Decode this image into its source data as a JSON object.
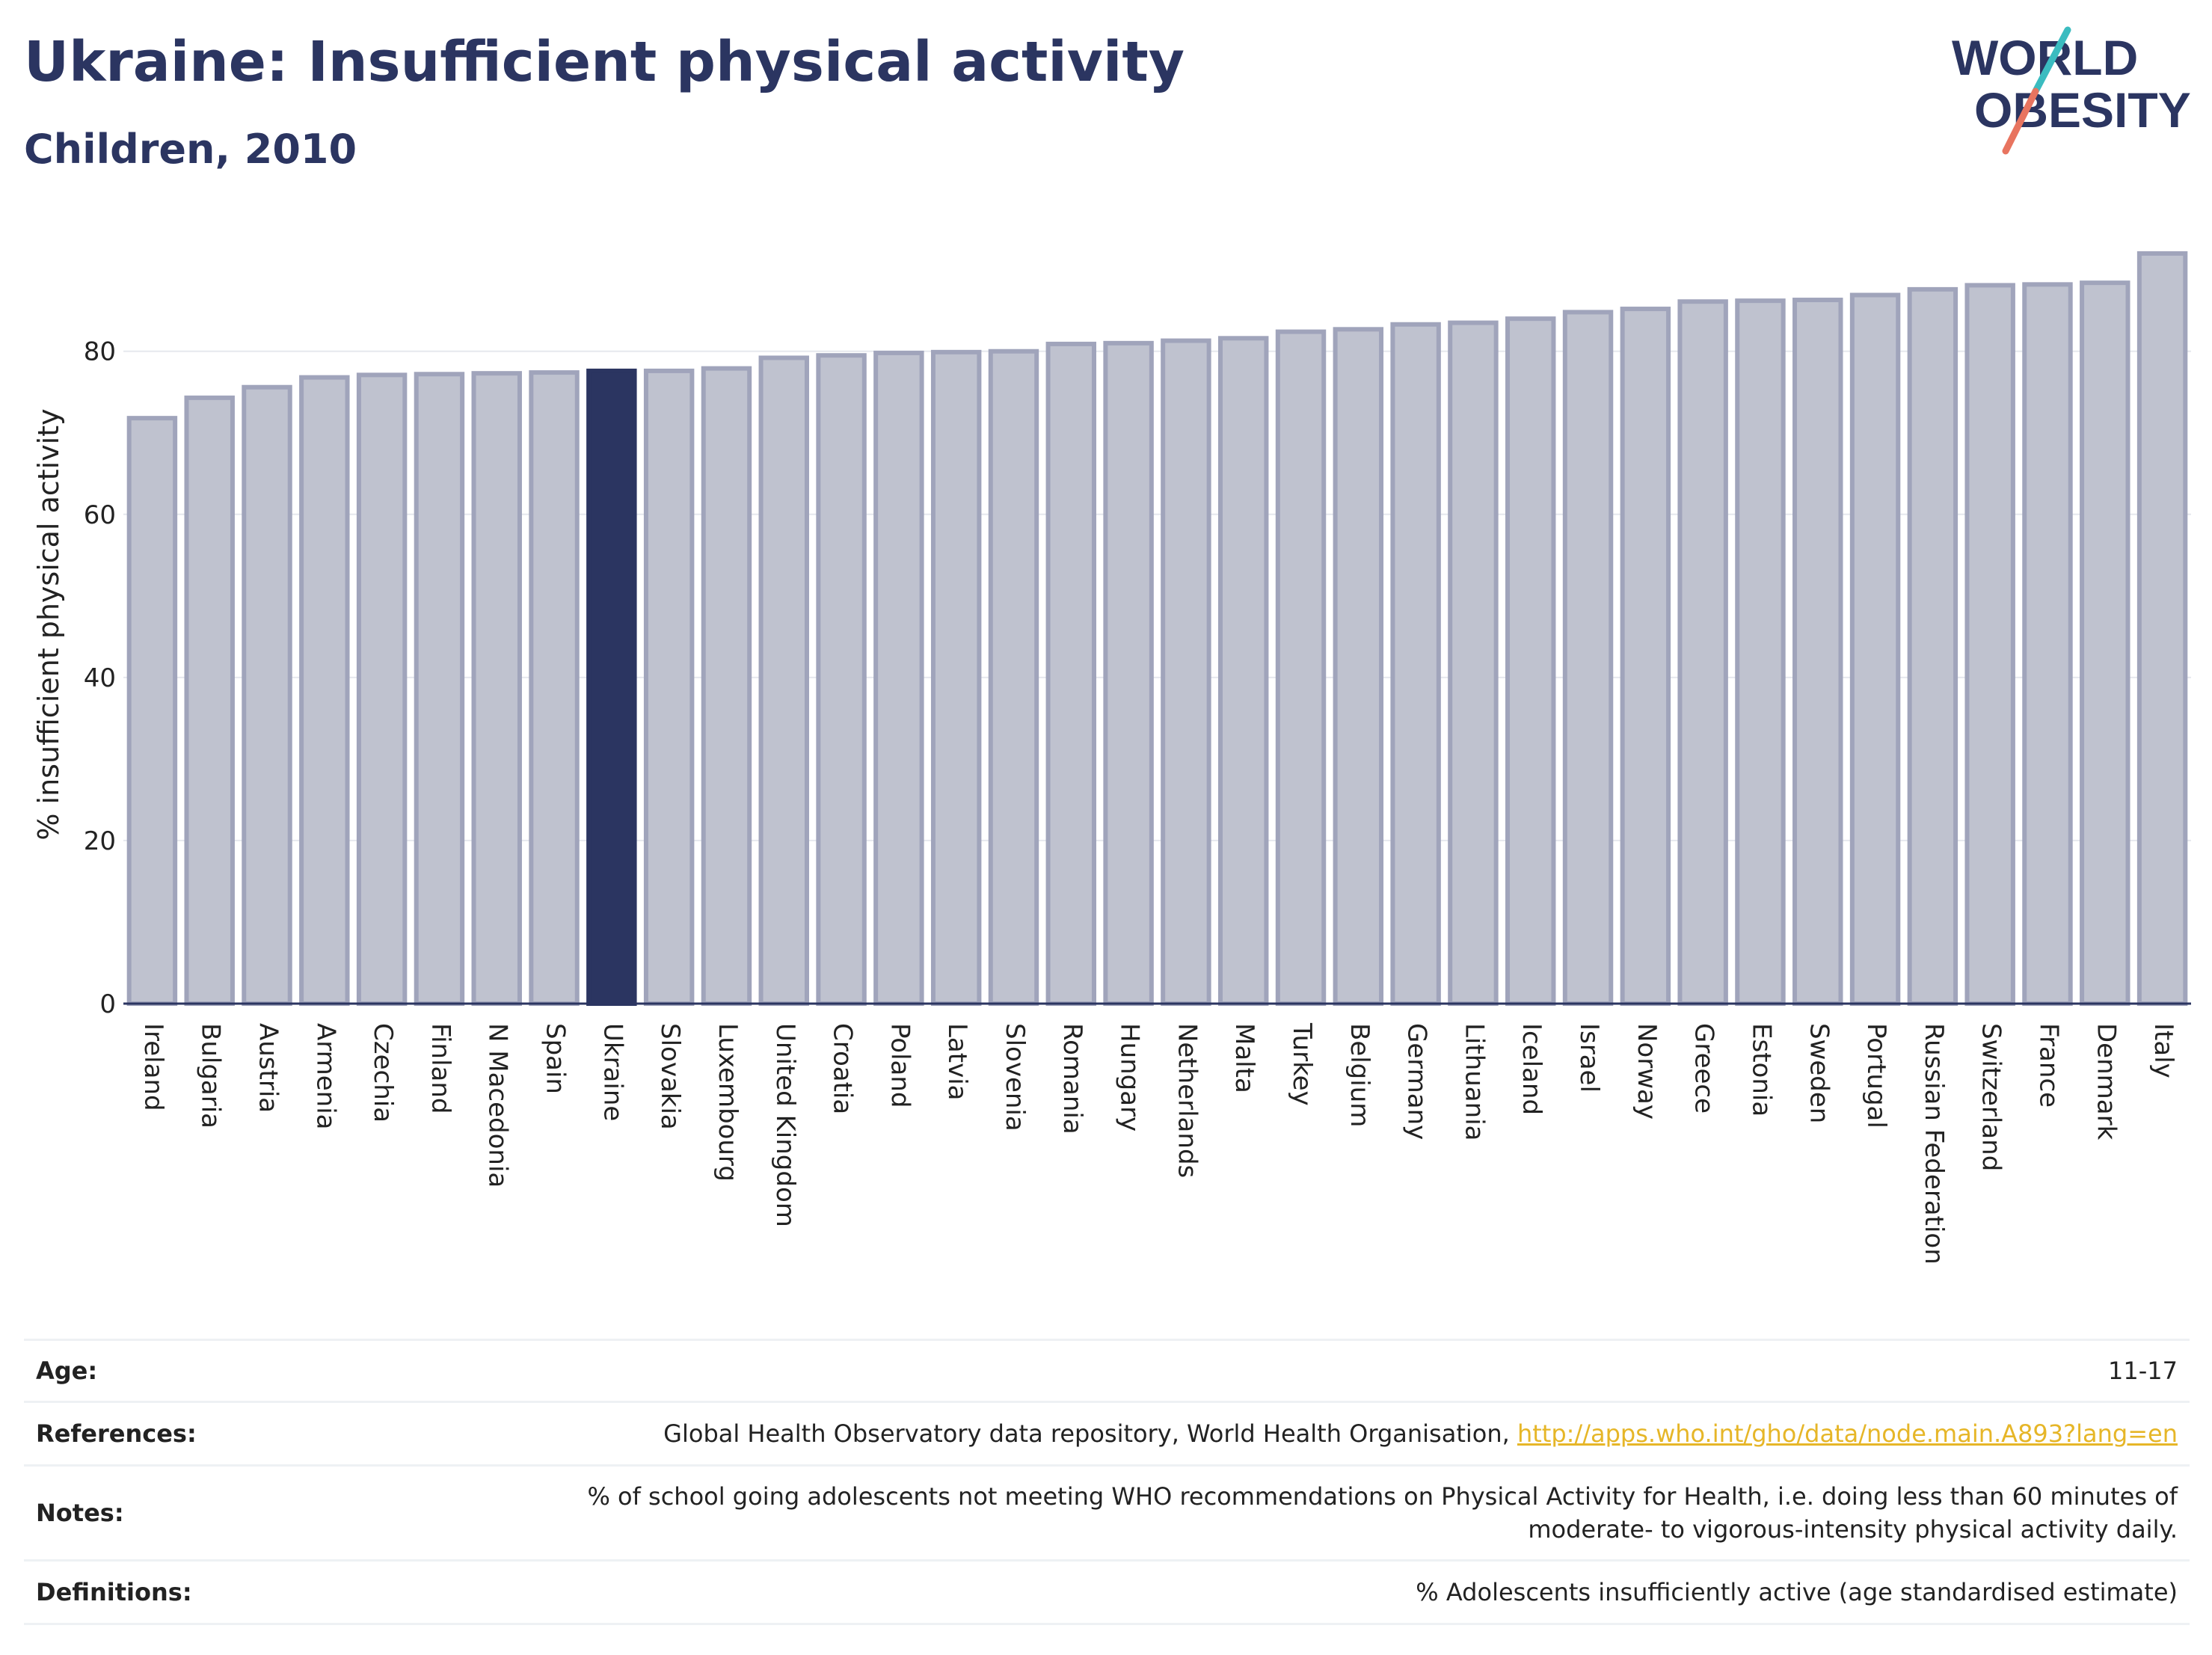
{
  "header": {
    "title": "Ukraine: Insufficient physical activity",
    "subtitle": "Children, 2010",
    "logo_line1": "WORLD",
    "logo_line2": "OBESITY"
  },
  "colors": {
    "brand_navy": "#2b3561",
    "bar_fill": "#bfc2cf",
    "bar_stroke": "#a0a4bb",
    "highlight": "#2b3561",
    "logo_teal": "#3bbcc0",
    "logo_coral": "#e8745f",
    "link": "#e6b628"
  },
  "chart_data": {
    "type": "bar",
    "title": "Ukraine: Insufficient physical activity",
    "subtitle": "Children, 2010",
    "ylabel": "% insufficient physical activity",
    "xlabel": "",
    "ylim": [
      0,
      93
    ],
    "yticks": [
      0,
      20,
      40,
      60,
      80
    ],
    "grid": true,
    "highlight": "Ukraine",
    "categories": [
      "Ireland",
      "Bulgaria",
      "Austria",
      "Armenia",
      "Czechia",
      "Finland",
      "N Macedonia",
      "Spain",
      "Ukraine",
      "Slovakia",
      "Luxembourg",
      "United Kingdom",
      "Croatia",
      "Poland",
      "Latvia",
      "Slovenia",
      "Romania",
      "Hungary",
      "Netherlands",
      "Malta",
      "Turkey",
      "Belgium",
      "Germany",
      "Lithuania",
      "Iceland",
      "Israel",
      "Norway",
      "Greece",
      "Estonia",
      "Sweden",
      "Portugal",
      "Russian Federation",
      "Switzerland",
      "France",
      "Denmark",
      "Italy"
    ],
    "values": [
      71.8,
      74.3,
      75.6,
      76.8,
      77.1,
      77.2,
      77.3,
      77.4,
      77.6,
      77.6,
      77.9,
      79.2,
      79.5,
      79.8,
      79.9,
      80.0,
      80.9,
      81.0,
      81.3,
      81.6,
      82.4,
      82.7,
      83.3,
      83.5,
      84.0,
      84.8,
      85.2,
      86.1,
      86.2,
      86.3,
      86.9,
      87.6,
      88.1,
      88.2,
      88.4,
      92.0
    ]
  },
  "info": {
    "age_label": "Age:",
    "age_value": "11-17",
    "references_label": "References:",
    "references_text": "Global Health Observatory data repository, World Health Organisation, ",
    "references_link": "http://apps.who.int/gho/data/node.main.A893?lang=en",
    "notes_label": "Notes:",
    "notes_line1": "% of school going adolescents not meeting WHO recommendations on Physical Activity for Health, i.e. doing less than 60 minutes of",
    "notes_line2": "moderate- to vigorous-intensity physical activity daily.",
    "definitions_label": "Definitions:",
    "definitions_value": "% Adolescents insufficiently active (age standardised estimate)"
  }
}
